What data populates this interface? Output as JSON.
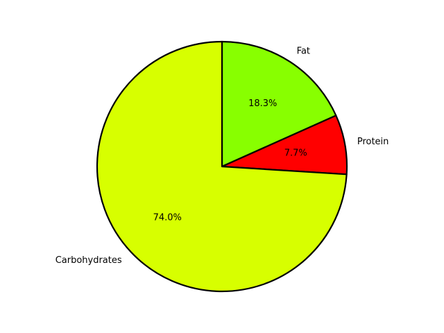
{
  "chart_data": {
    "type": "pie",
    "title": "",
    "start_angle_deg": 90,
    "direction": "clockwise",
    "edge_color": "#000000",
    "slices": [
      {
        "label": "Fat",
        "value": 18.3,
        "pct_label": "18.3%",
        "color": "#88ff00"
      },
      {
        "label": "Protein",
        "value": 7.7,
        "pct_label": "7.7%",
        "color": "#ff0000"
      },
      {
        "label": "Carbohydrates",
        "value": 74.0,
        "pct_label": "74.0%",
        "color": "#d7ff00"
      }
    ]
  }
}
